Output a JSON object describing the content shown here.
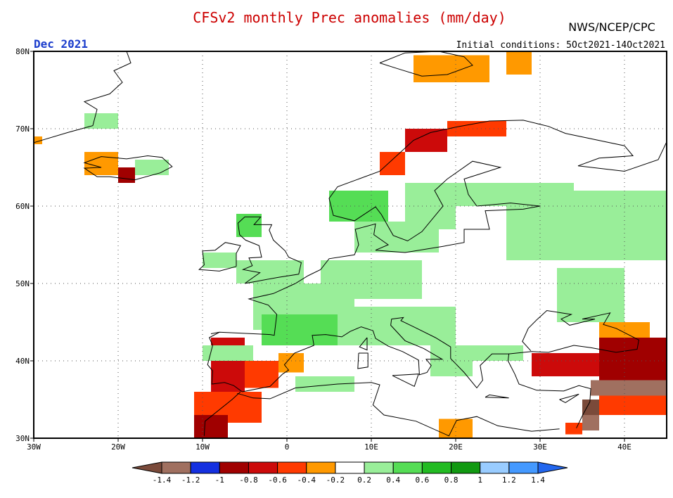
{
  "header": {
    "title": "CFSv2 monthly Prec anomalies (mm/day)",
    "agency": "NWS/NCEP/CPC",
    "valid_month": "Dec 2021",
    "init_conditions": "Initial conditions: 5Oct2021-14Oct2021"
  },
  "colors": {
    "title": "#cc0000",
    "month": "#1a3ccc",
    "text": "#000000",
    "frame": "#000000",
    "grid": "#555555",
    "coast": "#000000"
  },
  "chart_data": {
    "type": "heatmap",
    "title": "CFSv2 monthly Prec anomalies (mm/day)",
    "subtitle": "Dec 2021",
    "xlim": [
      -30,
      45
    ],
    "ylim": [
      30,
      80
    ],
    "x_ticks": [
      {
        "value": -30,
        "label": "30W"
      },
      {
        "value": -20,
        "label": "20W"
      },
      {
        "value": -10,
        "label": "10W"
      },
      {
        "value": 0,
        "label": "0"
      },
      {
        "value": 10,
        "label": "10E"
      },
      {
        "value": 20,
        "label": "20E"
      },
      {
        "value": 30,
        "label": "30E"
      },
      {
        "value": 40,
        "label": "40E"
      }
    ],
    "y_ticks": [
      {
        "value": 30,
        "label": "30N"
      },
      {
        "value": 40,
        "label": "40N"
      },
      {
        "value": 50,
        "label": "50N"
      },
      {
        "value": 60,
        "label": "60N"
      },
      {
        "value": 70,
        "label": "70N"
      },
      {
        "value": 80,
        "label": "80N"
      }
    ],
    "grid": true,
    "colorbar": {
      "bins": [
        {
          "color": "#7a4a3a"
        },
        {
          "color": "#a07060"
        },
        {
          "color": "#1430e0"
        },
        {
          "color": "#a00000"
        },
        {
          "color": "#cc0a0a"
        },
        {
          "color": "#ff3a00"
        },
        {
          "color": "#ff9900"
        },
        {
          "color": "#ffffff"
        },
        {
          "color": "#99ee99"
        },
        {
          "color": "#55dd55"
        },
        {
          "color": "#22bb22"
        },
        {
          "color": "#119911"
        },
        {
          "color": "#99ccff"
        },
        {
          "color": "#4499ff"
        },
        {
          "color": "#2266ee"
        }
      ],
      "tick_labels": [
        "-1.4",
        "-1.2",
        "-1",
        "-0.8",
        "-0.6",
        "-0.4",
        "-0.2",
        "0.2",
        "0.4",
        "0.6",
        "0.8",
        "1",
        "1.2",
        "1.4"
      ]
    },
    "anomaly_cells": [
      {
        "lon": [
          -11,
          -3
        ],
        "lat": [
          32,
          36
        ],
        "value": -0.5
      },
      {
        "lon": [
          -9,
          -5
        ],
        "lat": [
          36,
          43
        ],
        "value": -0.7
      },
      {
        "lon": [
          -5,
          -1
        ],
        "lat": [
          36.5,
          40
        ],
        "value": -0.45
      },
      {
        "lon": [
          -1,
          2
        ],
        "lat": [
          38.5,
          41
        ],
        "value": -0.3
      },
      {
        "lon": [
          -11,
          -7
        ],
        "lat": [
          30,
          33
        ],
        "value": -0.8
      },
      {
        "lon": [
          -20,
          -18
        ],
        "lat": [
          63,
          65
        ],
        "value": -0.8
      },
      {
        "lon": [
          -24,
          -20
        ],
        "lat": [
          64,
          67
        ],
        "value": -0.3
      },
      {
        "lon": [
          -30,
          -29
        ],
        "lat": [
          68,
          69
        ],
        "value": -0.3
      },
      {
        "lon": [
          11,
          14
        ],
        "lat": [
          64,
          67
        ],
        "value": -0.45
      },
      {
        "lon": [
          14,
          19
        ],
        "lat": [
          67,
          70
        ],
        "value": -0.75
      },
      {
        "lon": [
          19,
          26
        ],
        "lat": [
          69,
          71
        ],
        "value": -0.5
      },
      {
        "lon": [
          15,
          24
        ],
        "lat": [
          76,
          79.5
        ],
        "value": -0.3
      },
      {
        "lon": [
          26,
          29
        ],
        "lat": [
          77,
          80
        ],
        "value": -0.3
      },
      {
        "lon": [
          29,
          37
        ],
        "lat": [
          38,
          41
        ],
        "value": -0.7
      },
      {
        "lon": [
          37,
          45
        ],
        "lat": [
          37,
          43
        ],
        "value": -0.9
      },
      {
        "lon": [
          36,
          45
        ],
        "lat": [
          35.5,
          37.5
        ],
        "value": -1.2
      },
      {
        "lon": [
          37,
          45
        ],
        "lat": [
          33,
          35.5
        ],
        "value": -0.45
      },
      {
        "lon": [
          35,
          37
        ],
        "lat": [
          33,
          35
        ],
        "value": -1.4
      },
      {
        "lon": [
          35,
          37
        ],
        "lat": [
          31,
          33
        ],
        "value": -1.2
      },
      {
        "lon": [
          37,
          43
        ],
        "lat": [
          43,
          45
        ],
        "value": -0.3
      },
      {
        "lon": [
          33,
          35
        ],
        "lat": [
          30.5,
          32
        ],
        "value": -0.45
      },
      {
        "lon": [
          18,
          22
        ],
        "lat": [
          30,
          32.5
        ],
        "value": -0.3
      },
      {
        "lon": [
          22,
          28
        ],
        "lat": [
          40,
          42
        ],
        "value": 0.3
      },
      {
        "lon": [
          26,
          45
        ],
        "lat": [
          53,
          62
        ],
        "value": 0.3
      },
      {
        "lon": [
          20,
          34
        ],
        "lat": [
          60,
          63
        ],
        "value": 0.3
      },
      {
        "lon": [
          -6,
          2
        ],
        "lat": [
          50,
          53
        ],
        "value": 0.3
      },
      {
        "lon": [
          -10,
          -6
        ],
        "lat": [
          52,
          54
        ],
        "value": 0.4
      },
      {
        "lon": [
          -6,
          -3
        ],
        "lat": [
          56,
          59
        ],
        "value": 0.5
      },
      {
        "lon": [
          -4,
          8
        ],
        "lat": [
          44,
          50
        ],
        "value": 0.35
      },
      {
        "lon": [
          -3,
          6
        ],
        "lat": [
          42,
          46
        ],
        "value": 0.55
      },
      {
        "lon": [
          4,
          16
        ],
        "lat": [
          48,
          53
        ],
        "value": 0.3
      },
      {
        "lon": [
          6,
          20
        ],
        "lat": [
          42,
          47
        ],
        "value": 0.35
      },
      {
        "lon": [
          8,
          18
        ],
        "lat": [
          54,
          58
        ],
        "value": 0.3
      },
      {
        "lon": [
          14,
          20
        ],
        "lat": [
          57,
          63
        ],
        "value": 0.3
      },
      {
        "lon": [
          5,
          12
        ],
        "lat": [
          58,
          62
        ],
        "value": 0.45
      },
      {
        "lon": [
          32,
          40
        ],
        "lat": [
          45,
          52
        ],
        "value": 0.3
      },
      {
        "lon": [
          -24,
          -20
        ],
        "lat": [
          70,
          72
        ],
        "value": 0.3
      },
      {
        "lon": [
          -18,
          -14
        ],
        "lat": [
          64,
          66
        ],
        "value": 0.3
      },
      {
        "lon": [
          17,
          22
        ],
        "lat": [
          38,
          42
        ],
        "value": 0.4
      },
      {
        "lon": [
          -10,
          -4
        ],
        "lat": [
          40,
          42
        ],
        "value": 0.3
      },
      {
        "lon": [
          1,
          8
        ],
        "lat": [
          36,
          38
        ],
        "value": 0.3
      }
    ]
  }
}
